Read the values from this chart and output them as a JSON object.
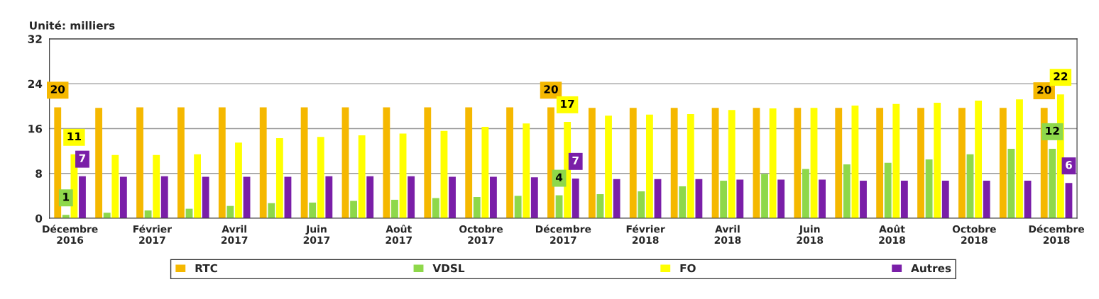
{
  "chart_data": {
    "type": "bar",
    "ylabel": "Unité: milliers",
    "categories": [
      "Décembre\n2016",
      null,
      "Février\n2017",
      null,
      "Avril\n2017",
      null,
      "Juin\n2017",
      null,
      "Août\n2017",
      null,
      "Octobre\n2017",
      null,
      "Décembre\n2017",
      null,
      "Février\n2018",
      null,
      "Avril\n2018",
      null,
      "Juin\n2018",
      null,
      "Août\n2018",
      null,
      "Octobre\n2018",
      null,
      "Décembre\n2018"
    ],
    "series": [
      {
        "name": "RTC",
        "color": "#f5b800",
        "values": [
          19.8,
          19.7,
          19.8,
          19.8,
          19.8,
          19.8,
          19.8,
          19.8,
          19.8,
          19.8,
          19.8,
          19.8,
          19.8,
          19.7,
          19.7,
          19.7,
          19.7,
          19.7,
          19.7,
          19.7,
          19.7,
          19.7,
          19.7,
          19.7,
          19.7
        ],
        "value_labels": [
          "20",
          null,
          null,
          null,
          null,
          null,
          null,
          null,
          null,
          null,
          null,
          null,
          "20",
          null,
          null,
          null,
          null,
          null,
          null,
          null,
          null,
          null,
          null,
          null,
          "20"
        ]
      },
      {
        "name": "VDSL",
        "color": "#8ed84a",
        "values": [
          0.6,
          1.0,
          1.4,
          1.7,
          2.2,
          2.7,
          2.8,
          3.1,
          3.3,
          3.6,
          3.8,
          4.0,
          4.1,
          4.3,
          4.8,
          5.7,
          6.7,
          7.9,
          8.8,
          9.6,
          9.9,
          10.5,
          11.4,
          12.4,
          12.4
        ],
        "value_labels": [
          "1",
          null,
          null,
          null,
          null,
          null,
          null,
          null,
          null,
          null,
          null,
          null,
          "4",
          null,
          null,
          null,
          null,
          null,
          null,
          null,
          null,
          null,
          null,
          null,
          "12"
        ]
      },
      {
        "name": "FO",
        "color": "#ffff00",
        "values": [
          11.4,
          11.3,
          11.3,
          11.4,
          13.5,
          14.3,
          14.5,
          14.8,
          15.1,
          15.6,
          16.3,
          16.9,
          17.2,
          18.3,
          18.5,
          18.6,
          19.3,
          19.6,
          19.7,
          20.1,
          20.4,
          20.6,
          21.0,
          21.2,
          22.1
        ],
        "value_labels": [
          "11",
          null,
          null,
          null,
          null,
          null,
          null,
          null,
          null,
          null,
          null,
          null,
          "17",
          null,
          null,
          null,
          null,
          null,
          null,
          null,
          null,
          null,
          null,
          null,
          "22"
        ]
      },
      {
        "name": "Autres",
        "color": "#7a1fa8",
        "values": [
          7.5,
          7.4,
          7.5,
          7.4,
          7.4,
          7.4,
          7.5,
          7.5,
          7.5,
          7.4,
          7.4,
          7.3,
          7.1,
          7.0,
          7.0,
          7.0,
          6.9,
          6.9,
          6.9,
          6.7,
          6.7,
          6.7,
          6.7,
          6.7,
          6.3
        ],
        "value_labels": [
          "7",
          null,
          null,
          null,
          null,
          null,
          null,
          null,
          null,
          null,
          null,
          null,
          "7",
          null,
          null,
          null,
          null,
          null,
          null,
          null,
          null,
          null,
          null,
          null,
          "6"
        ]
      }
    ],
    "ylim": [
      0,
      32
    ],
    "yticks": [
      0,
      8,
      16,
      24,
      32
    ],
    "grid": "y",
    "legend": "bottom"
  }
}
